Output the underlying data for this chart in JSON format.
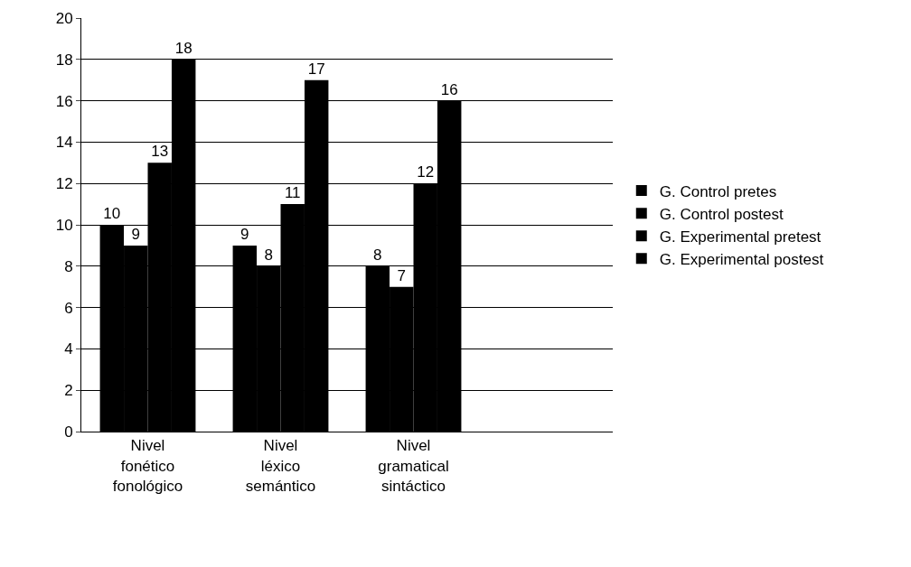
{
  "chart_data": {
    "type": "bar",
    "categories": [
      "Nivel fonético fonológico",
      "Nivel léxico semántico",
      "Nivel gramatical sintáctico",
      null
    ],
    "series": [
      {
        "name": "G. Control pretes",
        "color": "#000000",
        "values": [
          10,
          9,
          8,
          null
        ]
      },
      {
        "name": "G. Control postest",
        "color": "#000000",
        "values": [
          9,
          8,
          7,
          null
        ]
      },
      {
        "name": "G. Experimental pretest",
        "color": "#000000",
        "values": [
          13,
          11,
          12,
          null
        ]
      },
      {
        "name": "G. Experimental postest",
        "color": "#000000",
        "values": [
          18,
          17,
          16,
          null
        ]
      }
    ],
    "ylim": [
      0,
      20
    ],
    "yticks": [
      0,
      2,
      4,
      6,
      8,
      10,
      12,
      14,
      16,
      18,
      20
    ],
    "grid": "y",
    "legend": "right",
    "data_labels": true
  }
}
